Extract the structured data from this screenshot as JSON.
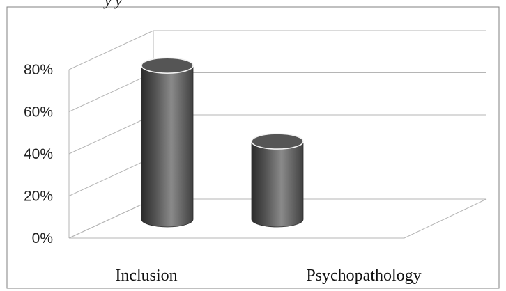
{
  "header": {
    "cropped_caption": "y      y"
  },
  "chart_data": {
    "type": "bar",
    "bar_shape": "cylinder",
    "title": "",
    "xlabel": "",
    "ylabel": "",
    "categories": [
      "Inclusion",
      "Psychopathology"
    ],
    "series": [
      {
        "values": [
          0.73,
          0.37
        ]
      }
    ],
    "ylim": [
      0,
      0.8
    ],
    "y_ticks": [
      0,
      0.2,
      0.4,
      0.6,
      0.8
    ],
    "y_tick_labels": [
      "0%",
      "20%",
      "40%",
      "60%",
      "80%"
    ],
    "grid": true,
    "style": "3d",
    "colors": {
      "bar": "#555555",
      "bar_highlight": "#8a8a8a",
      "bar_shadow": "#2b2b2b",
      "grid": "#b5b5b5",
      "text": "#222222",
      "border": "#808080"
    }
  }
}
